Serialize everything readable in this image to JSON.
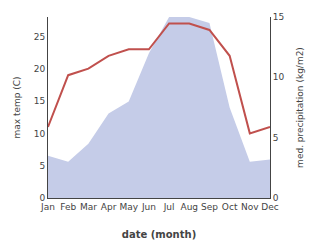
{
  "chart_data": {
    "type": "line",
    "categories": [
      "Jan",
      "Feb",
      "Mar",
      "Apr",
      "May",
      "Jun",
      "Jul",
      "Aug",
      "Sep",
      "Oct",
      "Nov",
      "Dec"
    ],
    "xlabel": "date (month)",
    "ylabel": "max temp (C)",
    "y2label": "med. precipitation (kg/m2)",
    "series": [
      {
        "type": "area",
        "axis": "y2",
        "color": "#c5cce8",
        "values": [
          3.5,
          3.0,
          4.5,
          7.0,
          8.0,
          12.0,
          15.0,
          15.0,
          14.5,
          7.5,
          3.0,
          3.2
        ]
      },
      {
        "type": "line",
        "color": "#c0504d",
        "values": [
          11,
          19,
          20,
          22,
          23,
          23,
          27,
          27,
          26,
          22,
          10,
          11
        ]
      }
    ],
    "ylim": [
      0,
      28
    ],
    "yticks": [
      0,
      5,
      10,
      15,
      20,
      25
    ],
    "y2lim": [
      0,
      15
    ],
    "y2ticks": [
      0,
      5,
      10,
      15
    ],
    "grid": false
  }
}
